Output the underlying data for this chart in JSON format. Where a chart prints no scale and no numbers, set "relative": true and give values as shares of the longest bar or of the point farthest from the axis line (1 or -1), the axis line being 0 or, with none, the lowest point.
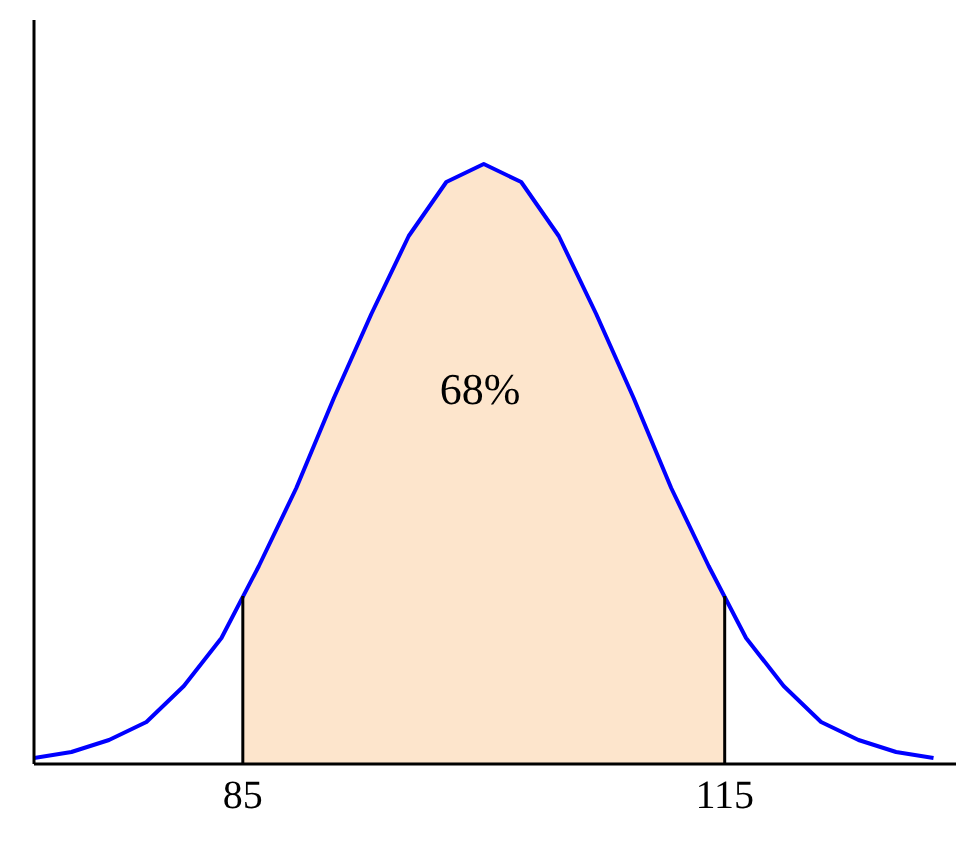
{
  "chart_data": {
    "type": "line",
    "relative": true,
    "xlim": [
      72,
      129.4
    ],
    "xticks": [
      85,
      115
    ],
    "series": [
      {
        "type": "area",
        "color": "#fde5cc",
        "x": [
          85,
          86,
          88.33,
          90.67,
          93,
          95.33,
          97.67,
          100,
          102.33,
          104.67,
          107,
          109.33,
          111.67,
          114,
          115
        ],
        "values": [
          0.28,
          0.33,
          0.46,
          0.61,
          0.75,
          0.88,
          0.97,
          1,
          0.97,
          0.88,
          0.75,
          0.61,
          0.46,
          0.33,
          0.28
        ]
      },
      {
        "color": "#0000ff",
        "x": [
          72,
          74.33,
          76.67,
          79,
          81.33,
          83.67,
          86,
          88.33,
          90.67,
          93,
          95.33,
          97.67,
          100,
          102.33,
          104.67,
          107,
          109.33,
          111.67,
          114,
          116.33,
          118.67,
          121,
          123.33,
          125.67,
          128
        ],
        "values": [
          0.01,
          0.02,
          0.04,
          0.07,
          0.13,
          0.21,
          0.33,
          0.46,
          0.61,
          0.75,
          0.88,
          0.97,
          1,
          0.97,
          0.88,
          0.75,
          0.61,
          0.46,
          0.33,
          0.21,
          0.13,
          0.07,
          0.04,
          0.02,
          0.01
        ]
      },
      {
        "color": "#000000",
        "x": [
          85,
          85
        ],
        "values": [
          0,
          0.28
        ]
      },
      {
        "color": "#000000",
        "x": [
          115,
          115
        ],
        "values": [
          0,
          0.28
        ]
      }
    ],
    "annotations": [
      "68%"
    ],
    "line_style": "solid"
  }
}
